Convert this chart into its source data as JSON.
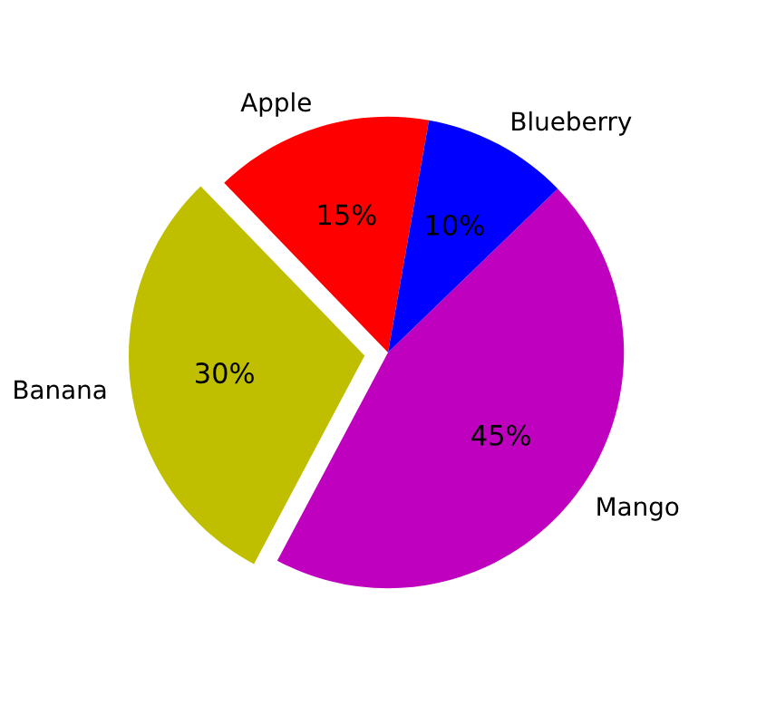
{
  "chart_data": {
    "type": "pie",
    "categories": [
      "Apple",
      "Banana",
      "Mango",
      "Blueberry"
    ],
    "values": [
      15,
      30,
      45,
      10
    ],
    "colors": [
      "#ff0000",
      "#bfbf00",
      "#bf00bf",
      "#0000ff"
    ],
    "value_labels": [
      "15%",
      "30%",
      "45%",
      "10%"
    ]
  }
}
